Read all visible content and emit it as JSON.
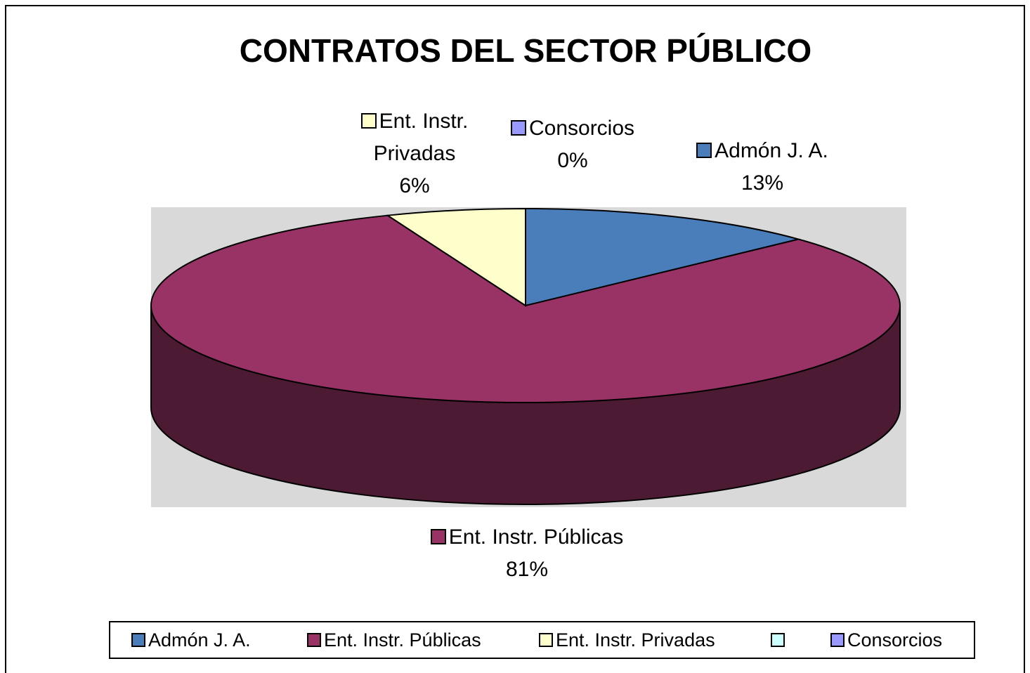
{
  "chart_data": {
    "type": "pie3d",
    "title": "CONTRATOS DEL SECTOR PÚBLICO",
    "categories": [
      "Admón J. A.",
      "Ent. Instr. Públicas",
      "Ent. Instr. Privadas",
      null,
      "Consorcios"
    ],
    "values": [
      13,
      81,
      6,
      0,
      0
    ],
    "value_labels": [
      "13%",
      "81%",
      "6%",
      null,
      "0%"
    ],
    "colors": [
      "#4a7ebb",
      "#993366",
      "#ffffcc",
      "#ccffff",
      "#9999ff"
    ],
    "legend": "bottom"
  }
}
